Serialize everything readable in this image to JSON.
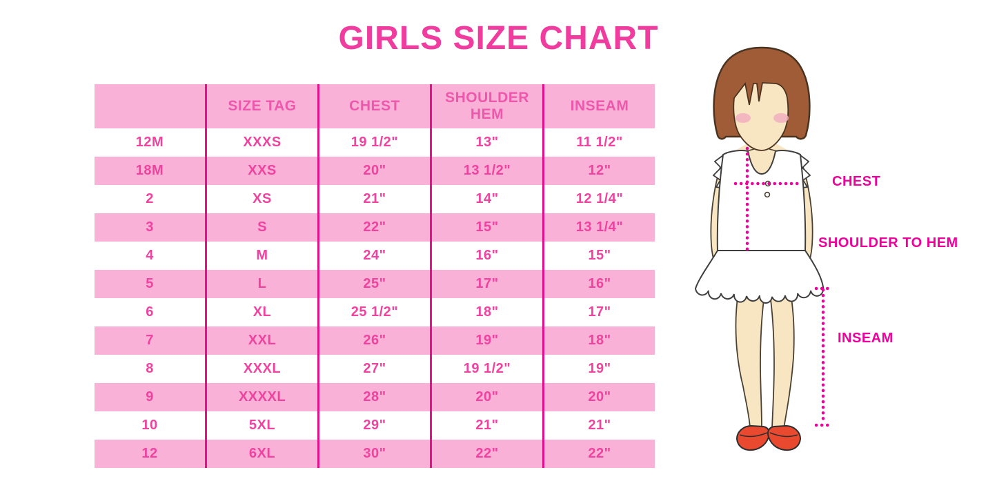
{
  "title": "GIRLS SIZE CHART",
  "chart_data": {
    "type": "table",
    "title": "GIRLS SIZE CHART",
    "columns": [
      "",
      "SIZE TAG",
      "CHEST",
      "SHOULDER HEM",
      "INSEAM"
    ],
    "rows": [
      [
        "12M",
        "XXXS",
        "19 1/2\"",
        "13\"",
        "11 1/2\""
      ],
      [
        "18M",
        "XXS",
        "20\"",
        "13 1/2\"",
        "12\""
      ],
      [
        "2",
        "XS",
        "21\"",
        "14\"",
        "12 1/4\""
      ],
      [
        "3",
        "S",
        "22\"",
        "15\"",
        "13 1/4\""
      ],
      [
        "4",
        "M",
        "24\"",
        "16\"",
        "15\""
      ],
      [
        "5",
        "L",
        "25\"",
        "17\"",
        "16\""
      ],
      [
        "6",
        "XL",
        "25 1/2\"",
        "18\"",
        "17\""
      ],
      [
        "7",
        "XXL",
        "26\"",
        "19\"",
        "18\""
      ],
      [
        "8",
        "XXXL",
        "27\"",
        "19 1/2\"",
        "19\""
      ],
      [
        "9",
        "XXXXL",
        "28\"",
        "20\"",
        "20\""
      ],
      [
        "10",
        "5XL",
        "29\"",
        "21\"",
        "21\""
      ],
      [
        "12",
        "6XL",
        "30\"",
        "22\"",
        "22\""
      ]
    ],
    "layout": {
      "row_stripe": "alternating white and pink, header pink",
      "grid": "vertical magenta dividers only"
    }
  },
  "diagram": {
    "figure": "girl-illustration",
    "labels": {
      "chest": "CHEST",
      "shoulder_to_hem": "SHOULDER TO HEM",
      "inseam": "INSEAM"
    }
  },
  "colors": {
    "title_pink": "#EF3C9E",
    "row_pink": "#F9B1D8",
    "header_text_pink": "#EE58AC",
    "cell_text_pink": "#F0429F",
    "divider_magenta": "#E5108C",
    "label_magenta": "#F0009A",
    "hair_brown": "#A05C36",
    "skin": "#F8E6C3",
    "shoe_red": "#E94A2F"
  }
}
